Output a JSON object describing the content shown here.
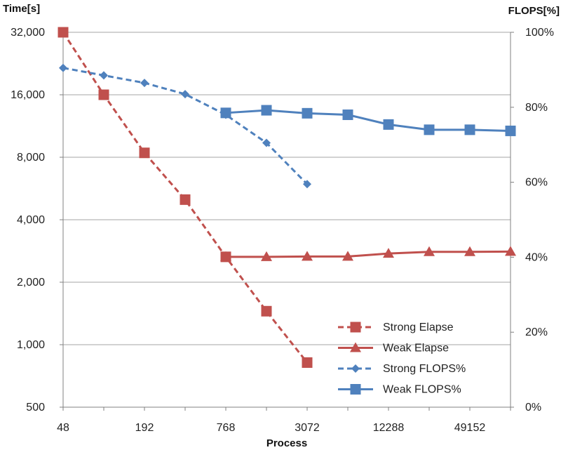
{
  "chart_data": {
    "type": "line",
    "title": "",
    "xlabel": "Process",
    "ylabel_left": "Time[s]",
    "ylabel_right": "FLOPS[%]",
    "x_positions": [
      48,
      96,
      192,
      384,
      768,
      1536,
      3072,
      6144,
      12288,
      24576,
      49152,
      98304
    ],
    "x_tick_labels": [
      "48",
      "192",
      "768",
      "3072",
      "12288",
      "49152"
    ],
    "x_tick_values": [
      48,
      192,
      768,
      3072,
      12288,
      49152
    ],
    "y_left_scale": "log2",
    "y_left_range": [
      500,
      32000
    ],
    "y_left_ticks": [
      500,
      1000,
      2000,
      4000,
      8000,
      16000,
      32000
    ],
    "y_left_tick_labels": [
      "500",
      "1,000",
      "2,000",
      "4,000",
      "8,000",
      "16,000",
      "32,000"
    ],
    "y_right_range": [
      0,
      100
    ],
    "y_right_ticks": [
      0,
      20,
      40,
      60,
      80,
      100
    ],
    "y_right_tick_labels": [
      "0%",
      "20%",
      "40%",
      "60%",
      "80%",
      "100%"
    ],
    "grid": "horizontal",
    "legend_position": "bottom-right",
    "series": [
      {
        "name": "Strong Elapse",
        "axis": "left",
        "color": "#c0504d",
        "dash": true,
        "marker": "square",
        "x": [
          48,
          96,
          192,
          384,
          768,
          1536,
          3072
        ],
        "y": [
          32000,
          16000,
          8400,
          5000,
          2650,
          1450,
          820
        ]
      },
      {
        "name": "Weak Elapse",
        "axis": "left",
        "color": "#c0504d",
        "dash": false,
        "marker": "triangle",
        "x": [
          768,
          1536,
          3072,
          6144,
          12288,
          24576,
          49152,
          98304
        ],
        "y": [
          2650,
          2650,
          2660,
          2660,
          2750,
          2800,
          2800,
          2810
        ]
      },
      {
        "name": "Strong FLOPS%",
        "axis": "right",
        "color": "#4f81bd",
        "dash": true,
        "marker": "diamond",
        "x": [
          48,
          96,
          192,
          384,
          768,
          1536,
          3072
        ],
        "y": [
          90.5,
          88.5,
          86.5,
          83.5,
          78,
          70.5,
          59.5
        ]
      },
      {
        "name": "Weak FLOPS%",
        "axis": "right",
        "color": "#4f81bd",
        "dash": false,
        "marker": "square",
        "x": [
          768,
          1536,
          3072,
          6144,
          12288,
          24576,
          49152,
          98304
        ],
        "y": [
          78.5,
          79.2,
          78.4,
          78,
          75.4,
          74,
          74,
          73.7
        ]
      }
    ]
  }
}
